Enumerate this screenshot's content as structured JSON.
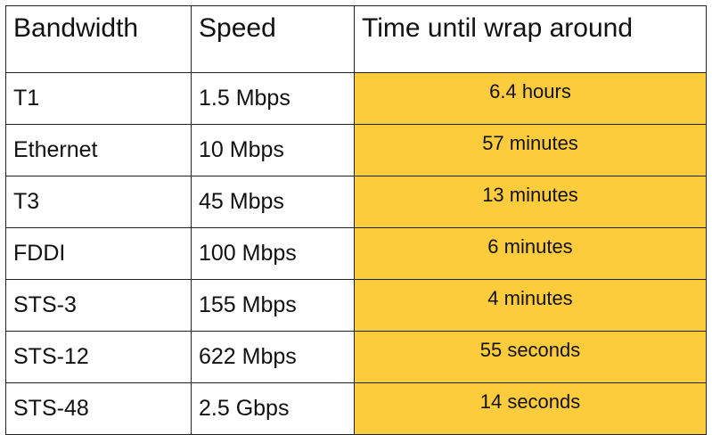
{
  "table": {
    "headers": [
      "Bandwidth",
      "Speed",
      "Time until wrap around"
    ],
    "rows": [
      {
        "bandwidth": "T1",
        "speed": "1.5 Mbps",
        "time": "6.4 hours"
      },
      {
        "bandwidth": "Ethernet",
        "speed": "10 Mbps",
        "time": "57 minutes"
      },
      {
        "bandwidth": "T3",
        "speed": "45 Mbps",
        "time": "13 minutes"
      },
      {
        "bandwidth": "FDDI",
        "speed": "100 Mbps",
        "time": "6 minutes"
      },
      {
        "bandwidth": "STS-3",
        "speed": "155 Mbps",
        "time": "4 minutes"
      },
      {
        "bandwidth": "STS-12",
        "speed": "622 Mbps",
        "time": "55 seconds"
      },
      {
        "bandwidth": "STS-48",
        "speed": "2.5 Gbps",
        "time": "14 seconds"
      }
    ]
  },
  "colors": {
    "highlight": "#fdcc3d",
    "border": "#222222",
    "text": "#111111"
  }
}
